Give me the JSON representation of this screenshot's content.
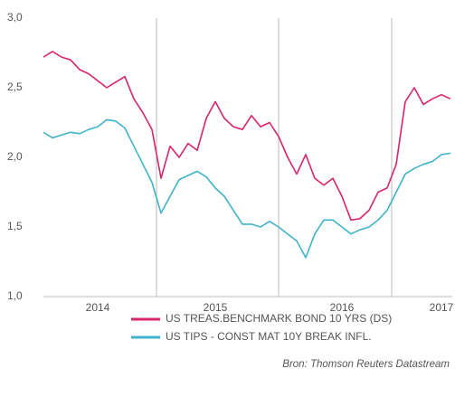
{
  "chart_data": {
    "type": "line",
    "categories": [
      null,
      null,
      null,
      null,
      null,
      null,
      "2014",
      null,
      null,
      null,
      null,
      null,
      null,
      null,
      null,
      null,
      null,
      null,
      null,
      "2015",
      null,
      null,
      null,
      null,
      null,
      null,
      null,
      null,
      null,
      null,
      null,
      null,
      null,
      "2016",
      null,
      null,
      null,
      null,
      null,
      null,
      null,
      null,
      null,
      null,
      "2017",
      null
    ],
    "series": [
      {
        "name": "US TREAS.BENCHMARK BOND 10 YRS (DS)",
        "color": "#d6246e",
        "values": [
          2.72,
          2.76,
          2.72,
          2.7,
          2.63,
          2.6,
          2.55,
          2.5,
          2.54,
          2.58,
          2.42,
          2.32,
          2.2,
          1.85,
          2.08,
          2.0,
          2.1,
          2.05,
          2.28,
          2.4,
          2.28,
          2.22,
          2.2,
          2.3,
          2.22,
          2.25,
          2.15,
          2.0,
          1.88,
          2.02,
          1.85,
          1.8,
          1.85,
          1.72,
          1.55,
          1.56,
          1.62,
          1.75,
          1.78,
          1.95,
          2.4,
          2.5,
          2.38,
          2.42,
          2.45,
          2.42
        ]
      },
      {
        "name": "US TIPS - CONST MAT 10Y BREAK INFL.",
        "color": "#3fb3c9",
        "values": [
          2.18,
          2.14,
          2.16,
          2.18,
          2.17,
          2.2,
          2.22,
          2.27,
          2.26,
          2.21,
          2.08,
          1.95,
          1.82,
          1.6,
          1.72,
          1.84,
          1.87,
          1.9,
          1.86,
          1.78,
          1.72,
          1.62,
          1.52,
          1.52,
          1.5,
          1.54,
          1.5,
          1.45,
          1.4,
          1.28,
          1.45,
          1.55,
          1.55,
          1.5,
          1.45,
          1.48,
          1.5,
          1.55,
          1.62,
          1.75,
          1.88,
          1.92,
          1.95,
          1.97,
          2.02,
          2.03
        ]
      }
    ],
    "ylim": [
      1,
      3
    ],
    "yticks": [
      {
        "value": 1,
        "label": "1,0"
      },
      {
        "value": 1.5,
        "label": "1,5"
      },
      {
        "value": 2,
        "label": "2,0"
      },
      {
        "value": 2.5,
        "label": "2,5"
      },
      {
        "value": 3,
        "label": "3,0"
      }
    ],
    "source": "Bron: Thomson Reuters Datastream"
  }
}
